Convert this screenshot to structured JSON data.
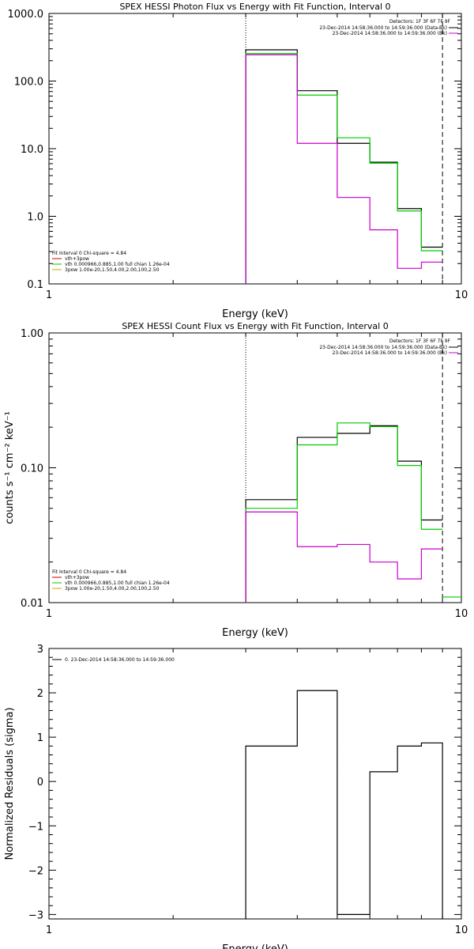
{
  "chart_data": [
    {
      "type": "step",
      "title": "SPEX HESSI Photon Flux vs Energy with Fit Function, Interval 0",
      "xlabel": "Energy (keV)",
      "ylabel": "",
      "xscale": "log",
      "yscale": "log",
      "xlim": [
        1,
        10
      ],
      "ylim": [
        0.1,
        1000
      ],
      "x_ticks": [
        "1",
        "10"
      ],
      "y_ticks": [
        "0.1",
        "1.0",
        "10.0",
        "100.0",
        "1000.0"
      ],
      "vlines": [
        {
          "x": 3.0,
          "style": "dotted"
        },
        {
          "x": 9.0,
          "style": "dashed"
        }
      ],
      "legend_right": {
        "placement": "top-right",
        "header": "Detectors: 1F 3F 6F 7F 9F",
        "lines": [
          {
            "text": "23-Dec-2014 14:58:36.000 to 14:59:36.000 (Data-Bk)",
            "color": "#000000"
          },
          {
            "text": "23-Dec-2014 14:58:36.000 to 14:59:36.000 (Bk)",
            "color": "#cc00cc"
          }
        ]
      },
      "legend_left": {
        "placement": "bottom-left",
        "header": "Fit Interval 0   Chi-square = 4.84",
        "lines": [
          {
            "text": "vth+3pow",
            "color": "#cc0000"
          },
          {
            "text": "vth 0.000966,0.885,1.00  full chian 1.26e-04",
            "color": "#00cc00"
          },
          {
            "text": "3pow 1.00e-20,1.50,4.00,2.00,100,2.50",
            "color": "#ccaa00"
          }
        ]
      },
      "edges": [
        3.0,
        4.0,
        5.0,
        6.0,
        7.0,
        8.0,
        9.0
      ],
      "series": [
        {
          "color": "#000000",
          "values": [
            290,
            72,
            12,
            6.3,
            1.3,
            0.35
          ]
        },
        {
          "color": "#00cc00",
          "values": [
            255,
            62,
            14.5,
            6.1,
            1.2,
            0.31
          ]
        },
        {
          "color": "#cc00cc",
          "values": [
            245,
            12,
            1.9,
            0.63,
            0.17,
            0.21
          ]
        }
      ]
    },
    {
      "type": "step",
      "title": "SPEX HESSI Count Flux vs Energy with Fit Function, Interval 0",
      "xlabel": "Energy (keV)",
      "ylabel": "counts s⁻¹ cm⁻² keV⁻¹",
      "xscale": "log",
      "yscale": "log",
      "xlim": [
        1,
        10
      ],
      "ylim": [
        0.01,
        1.0
      ],
      "x_ticks": [
        "1",
        "10"
      ],
      "y_ticks": [
        "0.01",
        "0.10",
        "1.00"
      ],
      "vlines": [
        {
          "x": 3.0,
          "style": "dotted"
        },
        {
          "x": 9.0,
          "style": "dashed"
        }
      ],
      "legend_right": {
        "placement": "top-right",
        "header": "Detectors: 1F 3F 6F 7F 9F",
        "lines": [
          {
            "text": "23-Dec-2014 14:58:36.000 to 14:59:36.000 (Data-Bk)",
            "color": "#000000"
          },
          {
            "text": "23-Dec-2014 14:58:36.000 to 14:59:36.000 (Bk)",
            "color": "#cc00cc"
          }
        ]
      },
      "legend_left": {
        "placement": "bottom-left",
        "header": "Fit Interval 0   Chi-square = 4.84",
        "lines": [
          {
            "text": "vth+3pow",
            "color": "#cc0000"
          },
          {
            "text": "vth 0.000966,0.885,1.00  full chian 1.26e-04",
            "color": "#00cc00"
          },
          {
            "text": "3pow 1.00e-20,1.50,4.00,2.00,100,2.50",
            "color": "#ccaa00"
          }
        ]
      },
      "edges": [
        3.0,
        4.0,
        5.0,
        6.0,
        7.0,
        8.0,
        9.0
      ],
      "series": [
        {
          "color": "#000000",
          "values": [
            0.058,
            0.168,
            0.18,
            0.205,
            0.112,
            0.041
          ]
        },
        {
          "color": "#00cc00",
          "values": [
            0.05,
            0.148,
            0.215,
            0.202,
            0.104,
            0.035
          ]
        },
        {
          "color": "#cc00cc",
          "values": [
            0.047,
            0.026,
            0.027,
            0.02,
            0.015,
            0.025
          ]
        }
      ],
      "extra_segments": [
        {
          "color": "#00cc00",
          "x0": 9.0,
          "x1": 10.0,
          "y": 0.011
        }
      ]
    },
    {
      "type": "step",
      "title": "",
      "xlabel": "Energy (keV)",
      "ylabel": "Normalized Residuals (sigma)",
      "xscale": "log",
      "yscale": "linear",
      "xlim": [
        1,
        10
      ],
      "ylim": [
        -3.1,
        3.0
      ],
      "x_ticks": [
        "1",
        "10"
      ],
      "y_ticks": [
        "−3",
        "−2",
        "−1",
        "0",
        "1",
        "2",
        "3"
      ],
      "y_tick_values": [
        -3,
        -2,
        -1,
        0,
        1,
        2,
        3
      ],
      "legend_left": {
        "placement": "top-left",
        "header": "",
        "lines": [
          {
            "text": "0. 23-Dec-2014 14:58:36.000 to 14:59:36.000",
            "color": "#000000"
          }
        ]
      },
      "edges": [
        3.0,
        4.0,
        5.0,
        6.0,
        7.0,
        8.0,
        9.0
      ],
      "series": [
        {
          "color": "#000000",
          "values": [
            0.8,
            2.05,
            -3.0,
            0.22,
            0.8,
            0.87
          ]
        }
      ]
    }
  ]
}
